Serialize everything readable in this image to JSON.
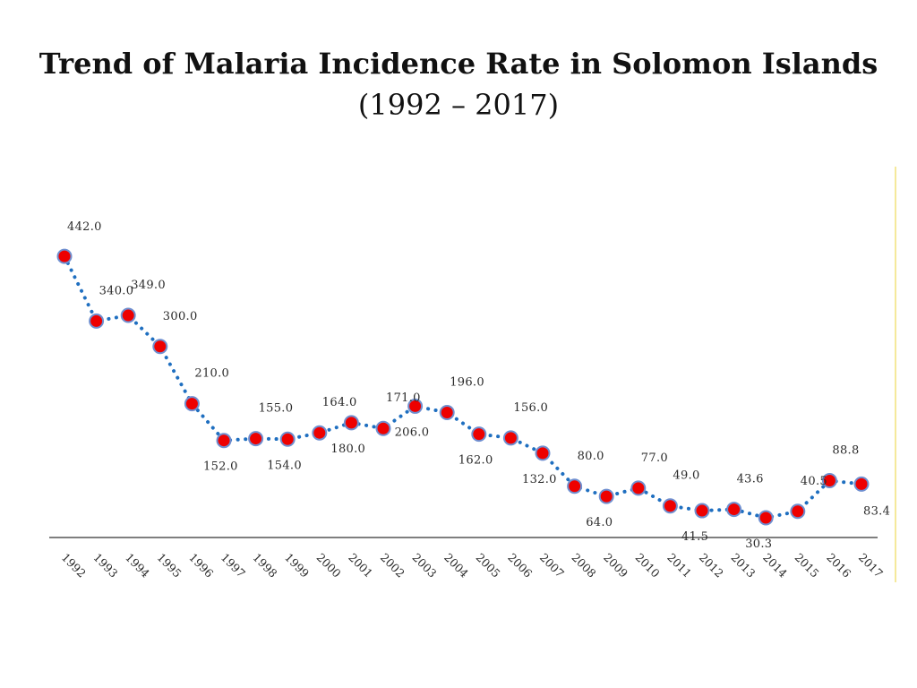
{
  "slide": {
    "title_line1": "Trend of  Malaria Incidence Rate in Solomon Islands",
    "title_line2": "(1992 – 2017)"
  },
  "chart_data": {
    "type": "line",
    "title": "Trend of  Malaria Incidence Rate in Solomon Islands (1992 – 2017)",
    "xlabel": "",
    "ylabel": "",
    "categories": [
      "1992",
      "1993",
      "1994",
      "1995",
      "1996",
      "1997",
      "1998",
      "1999",
      "2000",
      "2001",
      "2002",
      "2003",
      "2004",
      "2005",
      "2006",
      "2007",
      "2008",
      "2009",
      "2010",
      "2011",
      "2012",
      "2013",
      "2014",
      "2015",
      "2016",
      "2017"
    ],
    "series": [
      {
        "values": [
          442.0,
          340.0,
          349.0,
          300.0,
          210.0,
          152.0,
          155.0,
          154.0,
          164.0,
          180.0,
          171.0,
          206.0,
          196.0,
          162.0,
          156.0,
          132.0,
          80.0,
          64.0,
          77.0,
          49.0,
          41.5,
          43.6,
          30.3,
          40.5,
          88.8,
          83.4
        ],
        "labels": [
          "442.0",
          "340.0",
          "349.0",
          "300.0",
          "210.0",
          "152.0",
          "155.0",
          "154.0",
          "164.0",
          "180.0",
          "171.0",
          "206.0",
          "196.0",
          "162.0",
          "156.0",
          "132.0",
          "80.0",
          "64.0",
          "77.0",
          "49.0",
          "41.5",
          "43.6",
          "30.3",
          "40.5",
          "88.8",
          "83.4"
        ]
      }
    ],
    "ylim": [
      0,
      480
    ],
    "grid": false,
    "legend": "none",
    "line_style": "dotted",
    "colors": {
      "line": "#1f6fc0",
      "marker_fill": "#ee0000",
      "marker_stroke": "#6f8fd0",
      "baseline": "#7f7f7f",
      "right_border": "#f2e27a"
    }
  }
}
